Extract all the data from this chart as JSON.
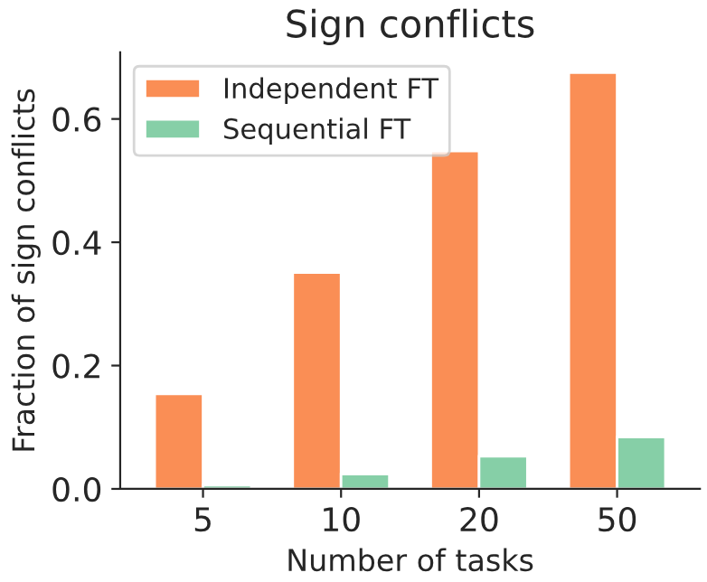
{
  "chart_data": {
    "type": "bar",
    "title": "Sign conflicts",
    "xlabel": "Number of tasks",
    "ylabel": "Fraction of sign conflicts",
    "categories": [
      "5",
      "10",
      "20",
      "50"
    ],
    "series": [
      {
        "name": "Independent FT",
        "color": "#fa8e55",
        "values": [
          0.154,
          0.351,
          0.548,
          0.675
        ]
      },
      {
        "name": "Sequential FT",
        "color": "#86cfa7",
        "values": [
          0.006,
          0.024,
          0.053,
          0.084
        ]
      }
    ],
    "ylim": [
      0,
      0.708
    ],
    "yticks": [
      {
        "value": 0,
        "label": "0.0"
      },
      0.2,
      0.4,
      0.6
    ],
    "grid": false,
    "legend": "top left"
  }
}
